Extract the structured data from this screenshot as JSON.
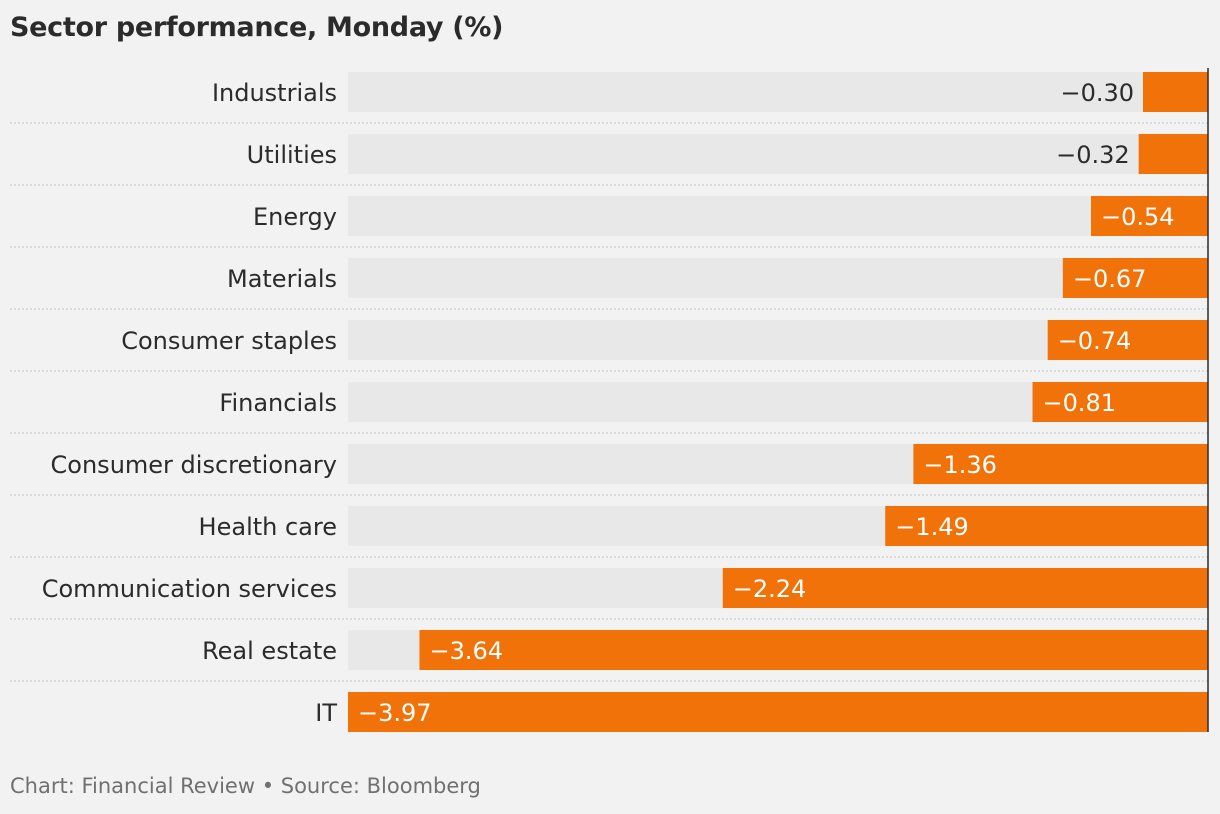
{
  "title": "Sector performance, Monday (%)",
  "footer": "Chart: Financial Review • Source: Bloomberg",
  "colors": {
    "bar": "#f07208",
    "track": "#e8e8e8",
    "background": "#f2f2f2",
    "divider": "#c4c4c4",
    "axis": "#2b2b2b",
    "label_on_bar": "#ffffff",
    "label_off_bar": "#2b2b2b"
  },
  "chart_data": {
    "type": "bar",
    "orientation": "horizontal",
    "title": "Sector performance, Monday (%)",
    "xlabel": "",
    "ylabel": "",
    "xlim": [
      -3.97,
      0
    ],
    "grid": false,
    "legend": "none",
    "categories": [
      "Industrials",
      "Utilities",
      "Energy",
      "Materials",
      "Consumer staples",
      "Financials",
      "Consumer discretionary",
      "Health care",
      "Communication services",
      "Real estate",
      "IT"
    ],
    "values": [
      -0.3,
      -0.32,
      -0.54,
      -0.67,
      -0.74,
      -0.81,
      -1.36,
      -1.49,
      -2.24,
      -3.64,
      -3.97
    ],
    "value_labels": [
      "−0.30",
      "−0.32",
      "−0.54",
      "−0.67",
      "−0.74",
      "−0.81",
      "−1.36",
      "−1.49",
      "−2.24",
      "−3.64",
      "−3.97"
    ]
  }
}
